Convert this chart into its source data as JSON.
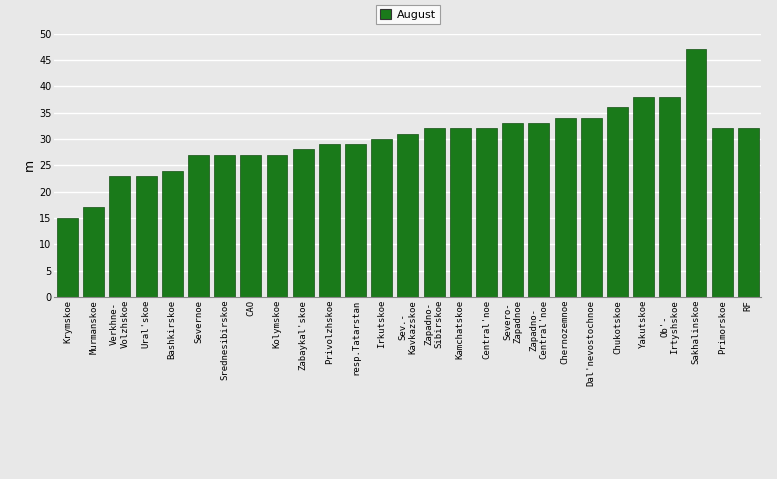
{
  "categories": [
    "Krymskoe",
    "Murmanskoe",
    "Verkhne-\nVolzhskoe",
    "Ural'skoe",
    "Bashkirskoe",
    "Severnoe",
    "Srednesibirskoe",
    "CAO",
    "Kolymskoe",
    "Zabaykal'skoe",
    "Privolzhskoe",
    "resp.Tatarstan",
    "Irkutskoe",
    "Sev.-\nKavkazskoe",
    "Zapadno-\nSibirskoe",
    "Kamchatskoe",
    "Central'noe",
    "Severo-\nZapadnoe",
    "Zapadno-\nCentral'noe",
    "Chernozemnoe",
    "Dal'nevostochnoe",
    "Chukotskoe",
    "Yakutskoe",
    "Ob'-\nIrtyshskoe",
    "Sakhalinskoe",
    "Primorskoe",
    "RF"
  ],
  "values": [
    15,
    17,
    23,
    23,
    24,
    27,
    27,
    27,
    27,
    28,
    29,
    29,
    30,
    31,
    32,
    32,
    32,
    33,
    33,
    34,
    34,
    36,
    38,
    38,
    47,
    32,
    32
  ],
  "bar_color": "#1a7a1a",
  "bar_edge_color": "#145014",
  "plot_bg_color": "#e8e8e8",
  "fig_bg_color": "#e8e8e8",
  "ylabel": "m",
  "ylim": [
    0,
    50
  ],
  "yticks": [
    0,
    5,
    10,
    15,
    20,
    25,
    30,
    35,
    40,
    45,
    50
  ],
  "legend_label": "August",
  "legend_color": "#1a7a1a",
  "tick_fontsize": 6.5,
  "ylabel_fontsize": 9,
  "grid_color": "#ffffff",
  "grid_linewidth": 1.0
}
